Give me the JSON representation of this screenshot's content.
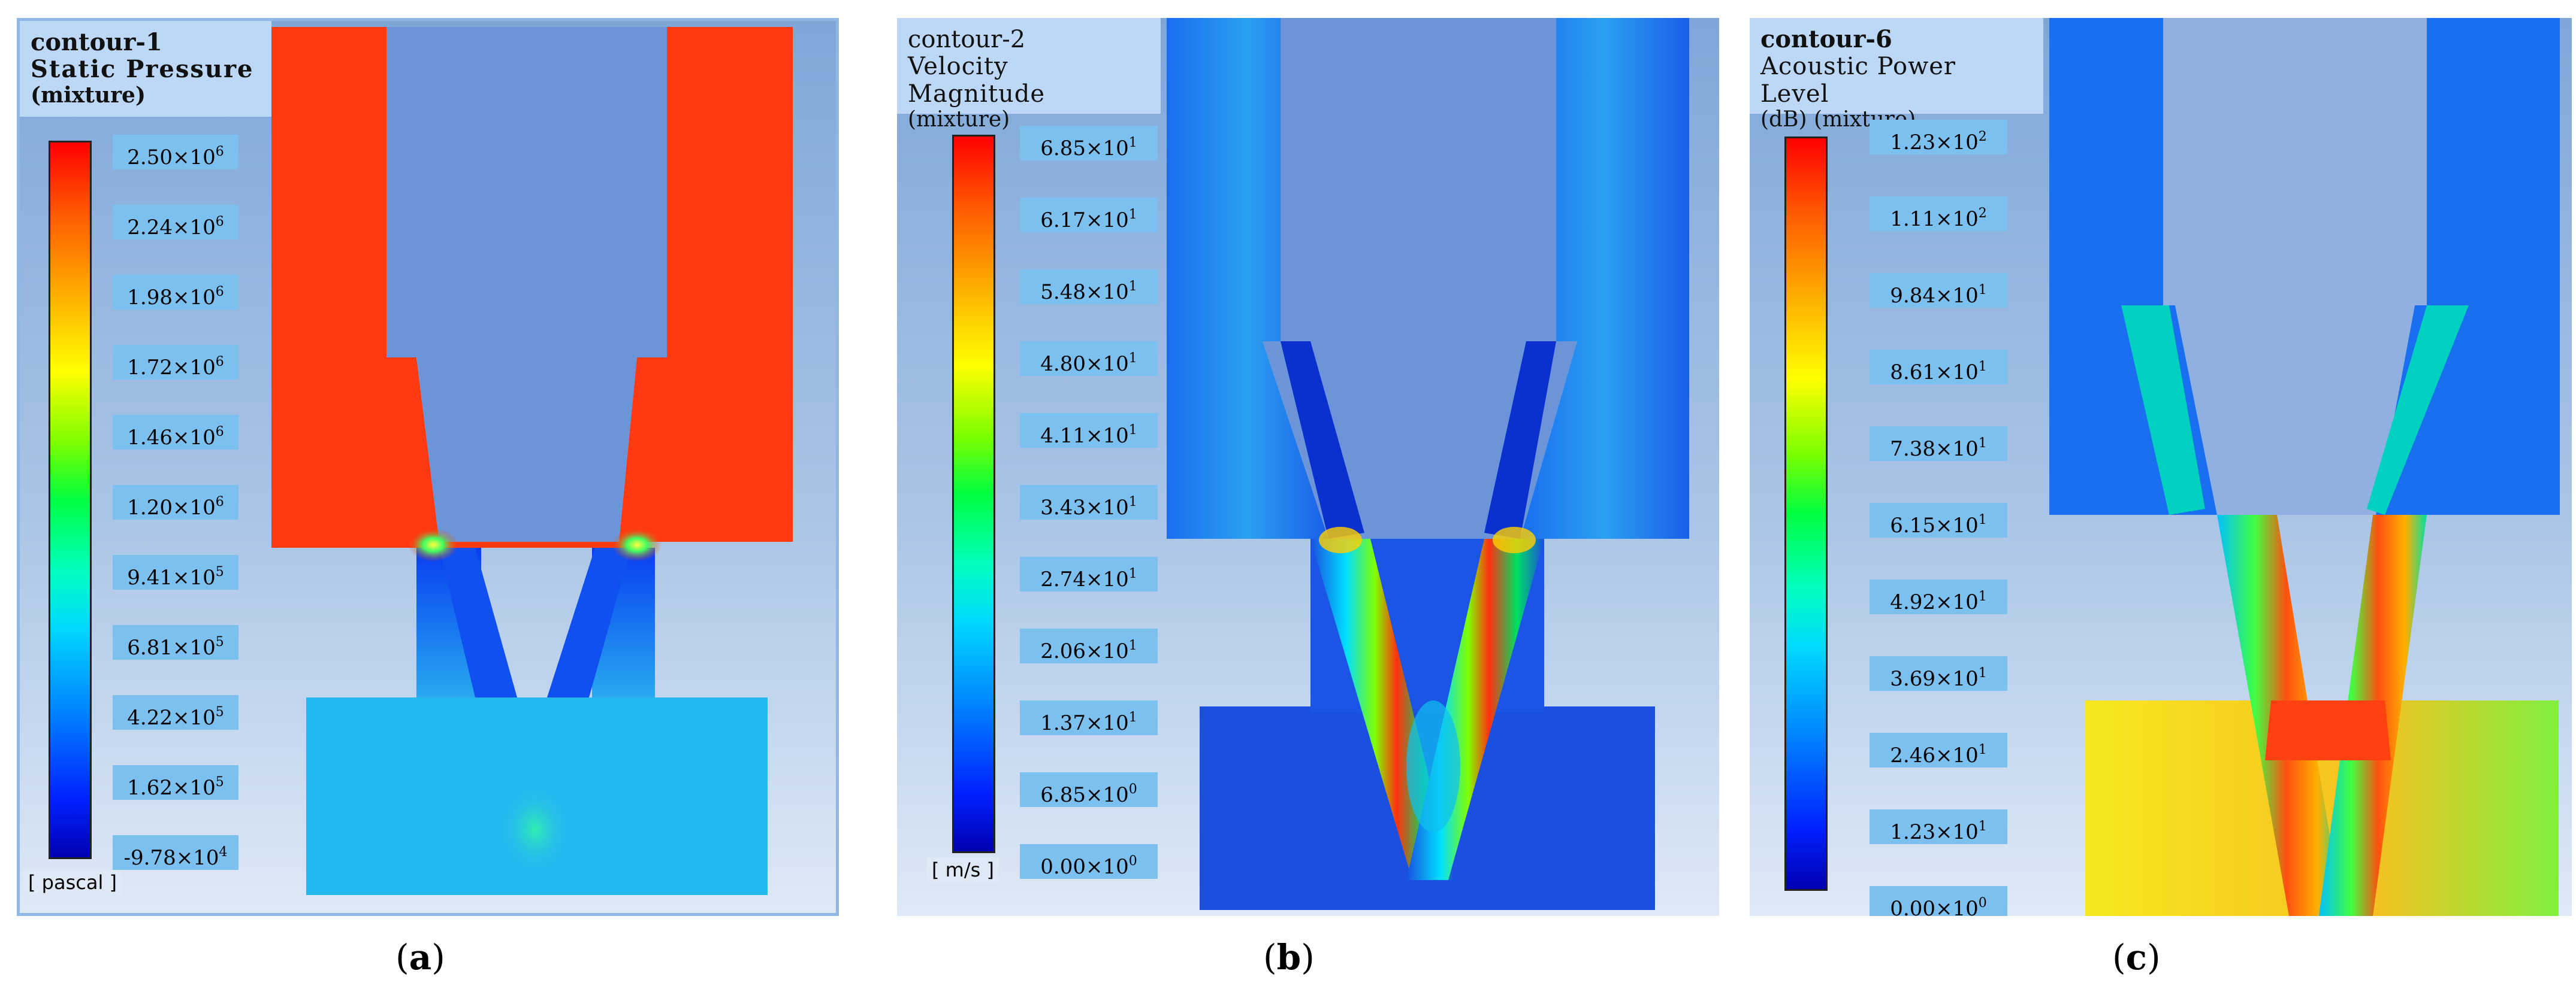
{
  "panels": [
    {
      "id": "a",
      "contour": "contour-1",
      "quantity": "Static Pressure",
      "phase": "(mixture)",
      "unit": "[ pascal ]",
      "ticks": [
        {
          "m": "2.50×10",
          "e": "6"
        },
        {
          "m": "2.24×10",
          "e": "6"
        },
        {
          "m": "1.98×10",
          "e": "6"
        },
        {
          "m": "1.72×10",
          "e": "6"
        },
        {
          "m": "1.46×10",
          "e": "6"
        },
        {
          "m": "1.20×10",
          "e": "6"
        },
        {
          "m": "9.41×10",
          "e": "5"
        },
        {
          "m": "6.81×10",
          "e": "5"
        },
        {
          "m": "4.22×10",
          "e": "5"
        },
        {
          "m": "1.62×10",
          "e": "5"
        },
        {
          "m": "-9.78×10",
          "e": "4"
        }
      ],
      "caption": "a"
    },
    {
      "id": "b",
      "contour": "contour-2",
      "quantity": "Velocity Magnitude",
      "phase": "(mixture)",
      "unit": "[ m/s ]",
      "ticks": [
        {
          "m": "6.85×10",
          "e": "1"
        },
        {
          "m": "6.17×10",
          "e": "1"
        },
        {
          "m": "5.48×10",
          "e": "1"
        },
        {
          "m": "4.80×10",
          "e": "1"
        },
        {
          "m": "4.11×10",
          "e": "1"
        },
        {
          "m": "3.43×10",
          "e": "1"
        },
        {
          "m": "2.74×10",
          "e": "1"
        },
        {
          "m": "2.06×10",
          "e": "1"
        },
        {
          "m": "1.37×10",
          "e": "1"
        },
        {
          "m": "6.85×10",
          "e": "0"
        },
        {
          "m": "0.00×10",
          "e": "0"
        }
      ],
      "caption": "b"
    },
    {
      "id": "c",
      "contour": "contour-6",
      "quantity": "Acoustic Power Level",
      "phase": "(dB) (mixture)",
      "unit": "",
      "ticks": [
        {
          "m": "1.23×10",
          "e": "2"
        },
        {
          "m": "1.11×10",
          "e": "2"
        },
        {
          "m": "9.84×10",
          "e": "1"
        },
        {
          "m": "8.61×10",
          "e": "1"
        },
        {
          "m": "7.38×10",
          "e": "1"
        },
        {
          "m": "6.15×10",
          "e": "1"
        },
        {
          "m": "4.92×10",
          "e": "1"
        },
        {
          "m": "3.69×10",
          "e": "1"
        },
        {
          "m": "2.46×10",
          "e": "1"
        },
        {
          "m": "1.23×10",
          "e": "1"
        },
        {
          "m": "0.00×10",
          "e": "0"
        }
      ],
      "caption": "c"
    }
  ],
  "colors": {
    "high": "#ff2a00",
    "mid": "#00e040",
    "low": "#0030ff",
    "chamber_a_inlet": "#ff3a10",
    "chamber_a_outlet": "#25b8f0",
    "chamber_b": "#1a4fe0",
    "chamber_c_outlet": "#f2e020"
  }
}
